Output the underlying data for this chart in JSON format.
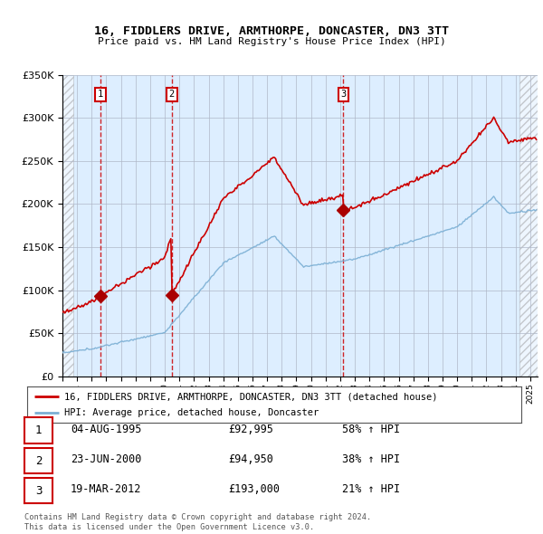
{
  "title": "16, FIDDLERS DRIVE, ARMTHORPE, DONCASTER, DN3 3TT",
  "subtitle": "Price paid vs. HM Land Registry's House Price Index (HPI)",
  "legend_line1": "16, FIDDLERS DRIVE, ARMTHORPE, DONCASTER, DN3 3TT (detached house)",
  "legend_line2": "HPI: Average price, detached house, Doncaster",
  "footer": "Contains HM Land Registry data © Crown copyright and database right 2024.\nThis data is licensed under the Open Government Licence v3.0.",
  "transactions": [
    {
      "num": 1,
      "date": "04-AUG-1995",
      "price": "£92,995",
      "hpi": "58% ↑ HPI",
      "year": 1995.59
    },
    {
      "num": 2,
      "date": "23-JUN-2000",
      "price": "£94,950",
      "hpi": "38% ↑ HPI",
      "year": 2000.48
    },
    {
      "num": 3,
      "date": "19-MAR-2012",
      "price": "£193,000",
      "hpi": "21% ↑ HPI",
      "year": 2012.21
    }
  ],
  "sale_prices": [
    92995,
    94950,
    193000
  ],
  "sale_years": [
    1995.59,
    2000.48,
    2012.21
  ],
  "ylim": [
    0,
    350000
  ],
  "xlim_start": 1993.0,
  "xlim_end": 2025.5,
  "hpi_color": "#7bafd4",
  "price_color": "#cc0000",
  "marker_color": "#aa0000",
  "bg_color": "#ddeeff",
  "grid_color": "#b0b8c8",
  "vline_color": "#cc0000",
  "box_color": "#cc0000",
  "hatch_left_end": 1993.75,
  "hatch_right_start": 2024.25
}
